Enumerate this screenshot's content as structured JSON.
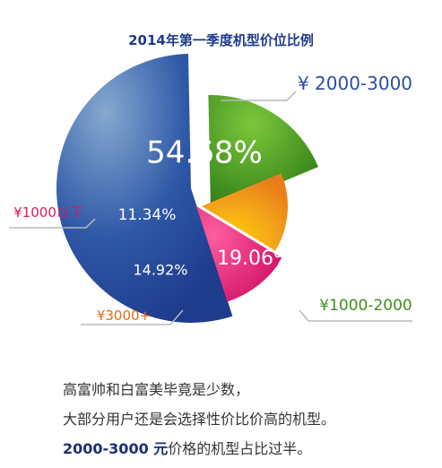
{
  "chart_data": {
    "type": "pie",
    "title": "2014年第一季度机型价位比例",
    "slices": [
      {
        "label": "¥ 2000-3000",
        "value": 54.68,
        "pct_label": "54.68%",
        "color": "#2a4f9f"
      },
      {
        "label": "¥1000-2000",
        "value": 19.06,
        "pct_label": "19.06%",
        "color": "#3f8f1f"
      },
      {
        "label": "¥3000+",
        "value": 14.92,
        "pct_label": "14.92%",
        "color": "#f2a81a"
      },
      {
        "label": "¥1000以下",
        "value": 11.34,
        "pct_label": "11.34%",
        "color": "#e8357b"
      }
    ],
    "label_colors": {
      "¥ 2000-3000": "#2a4fa0",
      "¥1000-2000": "#3f8f1f",
      "¥3000+": "#e56b12",
      "¥1000以下": "#d61a5f"
    }
  },
  "caption": {
    "line1": "高富帅和白富美毕竟是少数，",
    "line2": "大部分用户还是会选择性价比价高的机型。",
    "line3_bold": "2000-3000 元",
    "line3_rest": "价格的机型占比过半。"
  }
}
